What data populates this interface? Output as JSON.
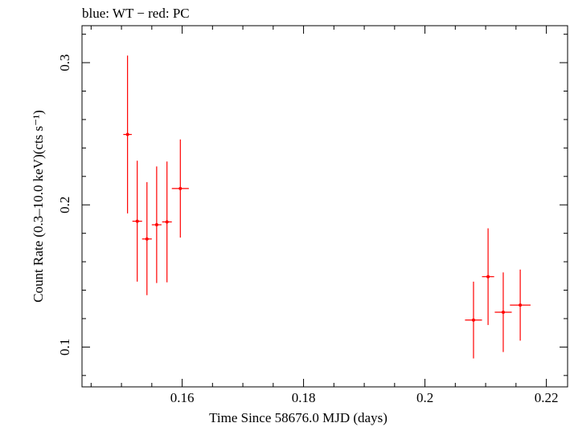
{
  "chart_data": {
    "type": "scatter",
    "title": "blue: WT − red: PC",
    "xlabel": "Time Since 58676.0 MJD (days)",
    "ylabel": "Count Rate (0.3–10.0 keV)(cts s⁻¹)",
    "xlim": [
      0.1435,
      0.2235
    ],
    "ylim": [
      0.072,
      0.326
    ],
    "xticks": [
      {
        "value": 0.16,
        "label": "0.16"
      },
      {
        "value": 0.18,
        "label": "0.18"
      },
      {
        "value": 0.2,
        "label": "0.2"
      },
      {
        "value": 0.22,
        "label": "0.22"
      }
    ],
    "yticks": [
      {
        "value": 0.1,
        "label": "0.1"
      },
      {
        "value": 0.2,
        "label": "0.2"
      },
      {
        "value": 0.3,
        "label": "0.3"
      }
    ],
    "series": [
      {
        "color": "#ff0000",
        "points": [
          {
            "x": 0.151,
            "xerr": 0.0007,
            "y": 0.2495,
            "yerr_lo": 0.0555,
            "yerr_hi": 0.0555
          },
          {
            "x": 0.1526,
            "xerr": 0.0008,
            "y": 0.1885,
            "yerr_lo": 0.0425,
            "yerr_hi": 0.0425
          },
          {
            "x": 0.1542,
            "xerr": 0.0008,
            "y": 0.176,
            "yerr_lo": 0.0395,
            "yerr_hi": 0.04
          },
          {
            "x": 0.1558,
            "xerr": 0.0008,
            "y": 0.186,
            "yerr_lo": 0.041,
            "yerr_hi": 0.041
          },
          {
            "x": 0.1575,
            "xerr": 0.0008,
            "y": 0.188,
            "yerr_lo": 0.0425,
            "yerr_hi": 0.0425
          },
          {
            "x": 0.1597,
            "xerr": 0.0014,
            "y": 0.2115,
            "yerr_lo": 0.0345,
            "yerr_hi": 0.0345
          },
          {
            "x": 0.208,
            "xerr": 0.0014,
            "y": 0.119,
            "yerr_lo": 0.027,
            "yerr_hi": 0.027
          },
          {
            "x": 0.2104,
            "xerr": 0.001,
            "y": 0.1495,
            "yerr_lo": 0.034,
            "yerr_hi": 0.034
          },
          {
            "x": 0.2129,
            "xerr": 0.0014,
            "y": 0.1245,
            "yerr_lo": 0.028,
            "yerr_hi": 0.028
          },
          {
            "x": 0.2157,
            "xerr": 0.0017,
            "y": 0.1295,
            "yerr_lo": 0.025,
            "yerr_hi": 0.025
          }
        ]
      }
    ]
  }
}
